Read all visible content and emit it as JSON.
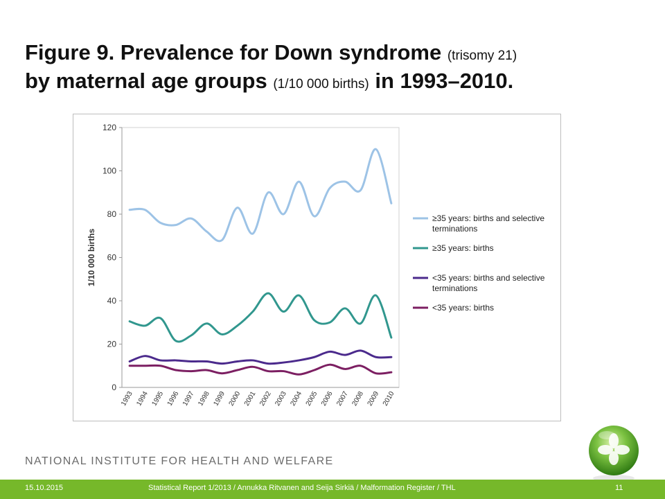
{
  "slide": {
    "title_main_1": "Figure 9. Prevalence for Down syndrome",
    "title_small_1": "(trisomy 21)",
    "title_main_2": "by maternal age groups",
    "title_small_2": "(1/10 000 births)",
    "title_main_3": "in 1993–2010.",
    "organization": "NATIONAL INSTITUTE FOR HEALTH AND WELFARE",
    "footer_date": "15.10.2015",
    "footer_source": "Statistical Report 1/2013 / Annukka Ritvanen and Seija Sirkiä / Malformation Register / THL",
    "page_number": "11",
    "accent_color": "#76b82a",
    "logo_icon": "green-sphere-logo-icon"
  },
  "chart_data": {
    "type": "line",
    "title": "",
    "xlabel": "",
    "ylabel": "1/10 000 births",
    "ylim": [
      0,
      120
    ],
    "yticks": [
      0,
      20,
      40,
      60,
      80,
      100,
      120
    ],
    "grid": false,
    "legend_position": "right",
    "x": [
      "1993",
      "1994",
      "1995",
      "1996",
      "1997",
      "1998",
      "1999",
      "2000",
      "2001",
      "2002",
      "2003",
      "2004",
      "2005",
      "2006",
      "2007",
      "2008",
      "2009",
      "2010"
    ],
    "series": [
      {
        "name": "≥35 years: births and selective terminations",
        "color": "#9dc3e6",
        "values": [
          82,
          82,
          76,
          75,
          78,
          72,
          68,
          83,
          71,
          90,
          80,
          95,
          79,
          92,
          95,
          91,
          110,
          85
        ]
      },
      {
        "name": "≥35 years: births",
        "color": "#31978e",
        "values": [
          30.5,
          28.5,
          32,
          21.5,
          24,
          29.5,
          24.5,
          28.5,
          35,
          43.5,
          35,
          42.5,
          31,
          30,
          36.5,
          29.5,
          42.5,
          23
        ]
      },
      {
        "name": "<35 years: births and selective terminations",
        "color": "#4b2a8c",
        "values": [
          12,
          14.5,
          12.5,
          12.5,
          12,
          12,
          11,
          12,
          12.5,
          11,
          11.5,
          12.5,
          14,
          16.5,
          15,
          17,
          14,
          14
        ]
      },
      {
        "name": "<35 years: births",
        "color": "#7c1f62",
        "values": [
          10,
          10,
          10,
          8,
          7.5,
          8,
          6.5,
          8,
          9.5,
          7.5,
          7.5,
          6,
          8,
          10.5,
          8.5,
          10,
          6.5,
          7
        ]
      }
    ]
  }
}
